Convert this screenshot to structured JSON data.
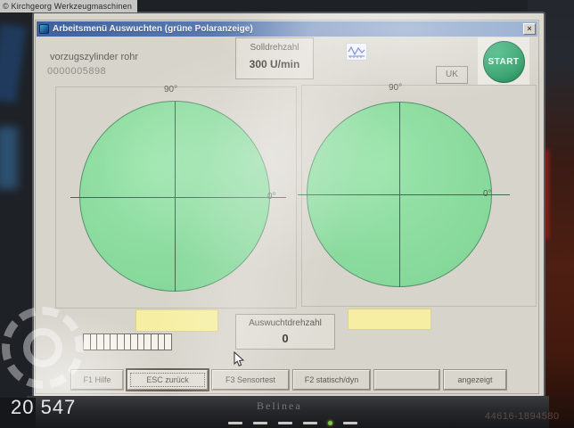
{
  "photo": {
    "watermark": "© Kirchgeorg Werkzeugmaschinen",
    "stock_number": "20 547",
    "monitor_brand": "Belinea",
    "serial": "44616-1894580"
  },
  "window": {
    "title": "Arbeitsmenü Auswuchten (grüne Polaranzeige)",
    "close": "×",
    "job_name": "vorzugszylinder rohr",
    "job_number": "0000005898",
    "solldrehzahl_label": "Solldrehzahl",
    "solldrehzahl_value": "300 U/min",
    "uk_label": "UK",
    "start_label": "START",
    "polar_left": {
      "deg90": "90°",
      "deg0": "0°"
    },
    "polar_right": {
      "deg90": "90°",
      "deg0": "0°"
    },
    "auswucht_label": "Auswuchtdrehzahl",
    "auswucht_value": "0",
    "progress_segments": 13,
    "footer_buttons": [
      "F1 Hilfe",
      "ESC zurück",
      "F3 Sensortest",
      "F2 statisch/dyn",
      "",
      "angezeigt"
    ],
    "colors": {
      "titlebar_from": "#3e61a0",
      "titlebar_to": "#8fa9cc",
      "polar_green": "#8bdb9e",
      "field_yellow": "#f6efa3",
      "start_green": "#2e9e68"
    }
  }
}
